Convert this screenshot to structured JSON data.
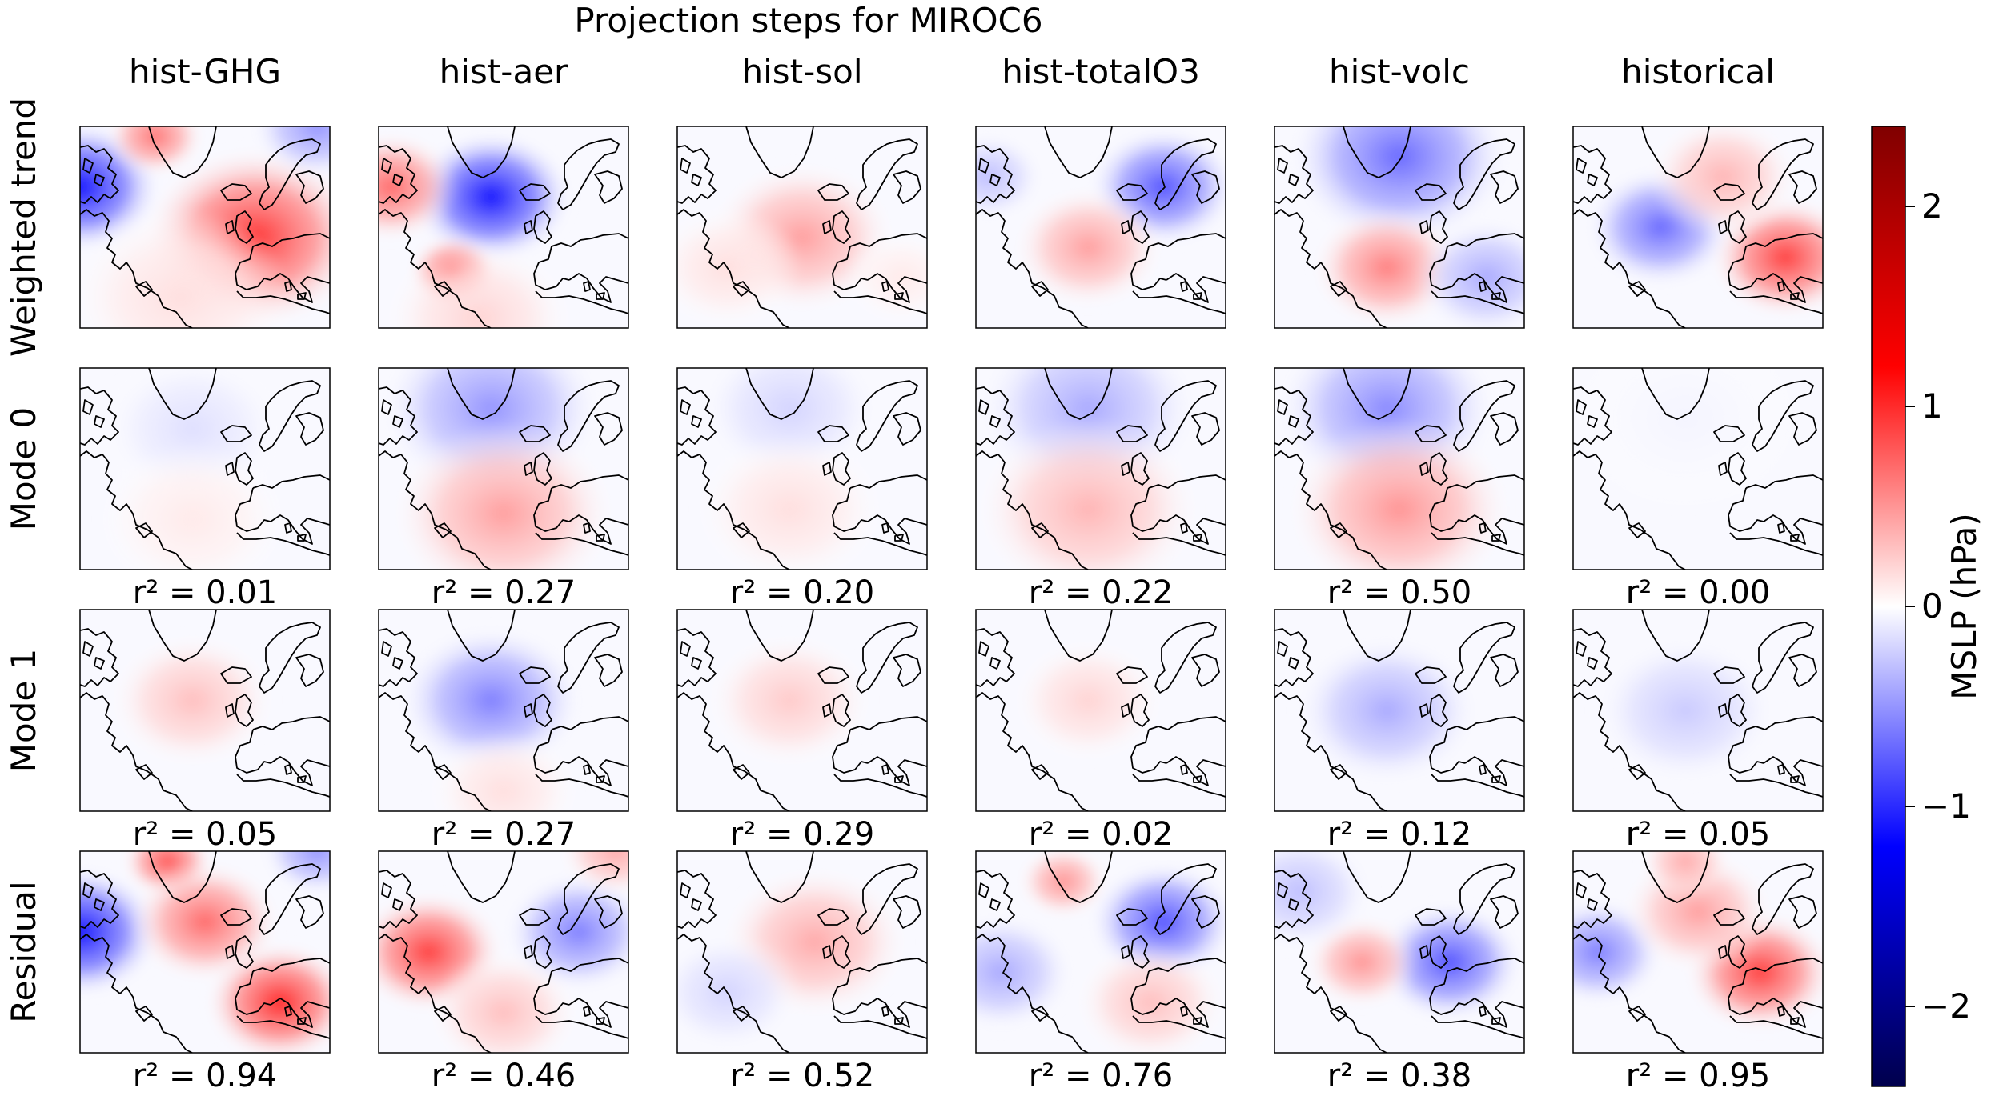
{
  "chart_data": {
    "type": "heatmap",
    "title": "Projection steps for MIROC6",
    "columns": [
      "hist-GHG",
      "hist-aer",
      "hist-sol",
      "hist-totalO3",
      "hist-volc",
      "historical"
    ],
    "rows": [
      "Weighted trend",
      "Mode 0",
      "Mode 1",
      "Residual"
    ],
    "r2_prefix": "r² = ",
    "r2": {
      "Mode 0": [
        "0.01",
        "0.27",
        "0.20",
        "0.22",
        "0.50",
        "0.00"
      ],
      "Mode 1": [
        "0.05",
        "0.27",
        "0.29",
        "0.02",
        "0.12",
        "0.05"
      ],
      "Residual": [
        "0.94",
        "0.46",
        "0.52",
        "0.76",
        "0.38",
        "0.95"
      ]
    },
    "colorbar": {
      "label": "MSLP (hPa)",
      "range": [
        -2.4,
        2.4
      ],
      "ticks": [
        2,
        1,
        0,
        -1,
        -2
      ],
      "tick_labels": [
        "2",
        "1",
        "0",
        "−1",
        "−2"
      ],
      "colormap": "seismic",
      "colors": {
        "negative_end": "#00004c",
        "negative": "#0000ff",
        "zero": "#ffffff",
        "positive": "#ff0000",
        "positive_end": "#800000"
      }
    },
    "fields_hpa": [
      [
        [
          {
            "x": 0.0,
            "y": 0.3,
            "r": 0.22,
            "v": -1.1
          },
          {
            "x": 0.3,
            "y": 0.05,
            "r": 0.13,
            "v": 0.65
          },
          {
            "x": 0.7,
            "y": 0.55,
            "r": 0.3,
            "v": 0.95
          },
          {
            "x": 0.95,
            "y": 0.0,
            "r": 0.18,
            "v": -0.5
          },
          {
            "x": 0.4,
            "y": 0.85,
            "r": 0.3,
            "v": 0.15
          }
        ],
        [
          {
            "x": 0.45,
            "y": 0.35,
            "r": 0.22,
            "v": -1.1
          },
          {
            "x": 0.05,
            "y": 0.3,
            "r": 0.18,
            "v": 0.7
          },
          {
            "x": 0.3,
            "y": 0.72,
            "r": 0.12,
            "v": 0.85
          },
          {
            "x": 0.4,
            "y": 0.95,
            "r": 0.25,
            "v": 0.2
          }
        ],
        [
          {
            "x": 0.5,
            "y": 0.55,
            "r": 0.25,
            "v": 0.45
          },
          {
            "x": 0.2,
            "y": 0.7,
            "r": 0.2,
            "v": 0.15
          },
          {
            "x": 0.9,
            "y": 0.75,
            "r": 0.15,
            "v": 0.1
          }
        ],
        [
          {
            "x": 0.75,
            "y": 0.3,
            "r": 0.2,
            "v": -0.8
          },
          {
            "x": 0.05,
            "y": 0.25,
            "r": 0.15,
            "v": -0.3
          },
          {
            "x": 0.45,
            "y": 0.6,
            "r": 0.2,
            "v": 0.45
          }
        ],
        [
          {
            "x": 0.5,
            "y": 0.15,
            "r": 0.3,
            "v": -0.7
          },
          {
            "x": 0.45,
            "y": 0.7,
            "r": 0.2,
            "v": 0.6
          },
          {
            "x": 0.85,
            "y": 0.75,
            "r": 0.2,
            "v": -0.4
          }
        ],
        [
          {
            "x": 0.35,
            "y": 0.5,
            "r": 0.2,
            "v": -0.7
          },
          {
            "x": 0.85,
            "y": 0.65,
            "r": 0.2,
            "v": 0.9
          },
          {
            "x": 0.6,
            "y": 0.25,
            "r": 0.2,
            "v": 0.35
          }
        ]
      ],
      [
        [
          {
            "x": 0.45,
            "y": 0.3,
            "r": 0.25,
            "v": -0.15
          },
          {
            "x": 0.45,
            "y": 0.75,
            "r": 0.25,
            "v": 0.1
          }
        ],
        [
          {
            "x": 0.45,
            "y": 0.2,
            "r": 0.3,
            "v": -0.5
          },
          {
            "x": 0.5,
            "y": 0.72,
            "r": 0.3,
            "v": 0.45
          }
        ],
        [
          {
            "x": 0.45,
            "y": 0.2,
            "r": 0.25,
            "v": -0.2
          },
          {
            "x": 0.45,
            "y": 0.7,
            "r": 0.25,
            "v": 0.15
          }
        ],
        [
          {
            "x": 0.45,
            "y": 0.2,
            "r": 0.3,
            "v": -0.4
          },
          {
            "x": 0.45,
            "y": 0.7,
            "r": 0.3,
            "v": 0.35
          }
        ],
        [
          {
            "x": 0.45,
            "y": 0.2,
            "r": 0.3,
            "v": -0.55
          },
          {
            "x": 0.5,
            "y": 0.7,
            "r": 0.3,
            "v": 0.5
          }
        ],
        [
          {
            "x": 0.45,
            "y": 0.25,
            "r": 0.3,
            "v": -0.05
          }
        ]
      ],
      [
        [
          {
            "x": 0.45,
            "y": 0.45,
            "r": 0.22,
            "v": 0.3
          }
        ],
        [
          {
            "x": 0.45,
            "y": 0.45,
            "r": 0.25,
            "v": -0.6
          },
          {
            "x": 0.5,
            "y": 0.9,
            "r": 0.2,
            "v": 0.15
          }
        ],
        [
          {
            "x": 0.45,
            "y": 0.45,
            "r": 0.22,
            "v": 0.25
          }
        ],
        [
          {
            "x": 0.45,
            "y": 0.45,
            "r": 0.2,
            "v": 0.2
          }
        ],
        [
          {
            "x": 0.45,
            "y": 0.5,
            "r": 0.25,
            "v": -0.4
          }
        ],
        [
          {
            "x": 0.45,
            "y": 0.5,
            "r": 0.25,
            "v": -0.25
          }
        ]
      ],
      [
        [
          {
            "x": 0.0,
            "y": 0.4,
            "r": 0.22,
            "v": -1.1
          },
          {
            "x": 0.35,
            "y": 0.05,
            "r": 0.12,
            "v": 0.8
          },
          {
            "x": 0.5,
            "y": 0.35,
            "r": 0.2,
            "v": 0.7
          },
          {
            "x": 0.8,
            "y": 0.75,
            "r": 0.2,
            "v": 1.0
          },
          {
            "x": 0.95,
            "y": 0.0,
            "r": 0.15,
            "v": -0.5
          }
        ],
        [
          {
            "x": 0.2,
            "y": 0.5,
            "r": 0.2,
            "v": 0.9
          },
          {
            "x": 0.8,
            "y": 0.4,
            "r": 0.2,
            "v": -0.6
          },
          {
            "x": 0.5,
            "y": 0.8,
            "r": 0.2,
            "v": 0.3
          },
          {
            "x": 0.95,
            "y": 0.0,
            "r": 0.15,
            "v": 0.4
          }
        ],
        [
          {
            "x": 0.55,
            "y": 0.45,
            "r": 0.25,
            "v": 0.4
          },
          {
            "x": 0.2,
            "y": 0.7,
            "r": 0.2,
            "v": -0.2
          }
        ],
        [
          {
            "x": 0.75,
            "y": 0.35,
            "r": 0.2,
            "v": -0.8
          },
          {
            "x": 0.35,
            "y": 0.15,
            "r": 0.12,
            "v": 0.5
          },
          {
            "x": 0.1,
            "y": 0.6,
            "r": 0.2,
            "v": -0.4
          },
          {
            "x": 0.7,
            "y": 0.75,
            "r": 0.2,
            "v": 0.3
          }
        ],
        [
          {
            "x": 0.7,
            "y": 0.55,
            "r": 0.2,
            "v": -0.8
          },
          {
            "x": 0.35,
            "y": 0.55,
            "r": 0.15,
            "v": 0.5
          },
          {
            "x": 0.1,
            "y": 0.2,
            "r": 0.2,
            "v": -0.3
          }
        ],
        [
          {
            "x": 0.75,
            "y": 0.6,
            "r": 0.2,
            "v": 0.9
          },
          {
            "x": 0.1,
            "y": 0.5,
            "r": 0.18,
            "v": -0.6
          },
          {
            "x": 0.5,
            "y": 0.3,
            "r": 0.2,
            "v": 0.45
          },
          {
            "x": 0.45,
            "y": 0.05,
            "r": 0.12,
            "v": 0.4
          }
        ]
      ]
    ]
  }
}
